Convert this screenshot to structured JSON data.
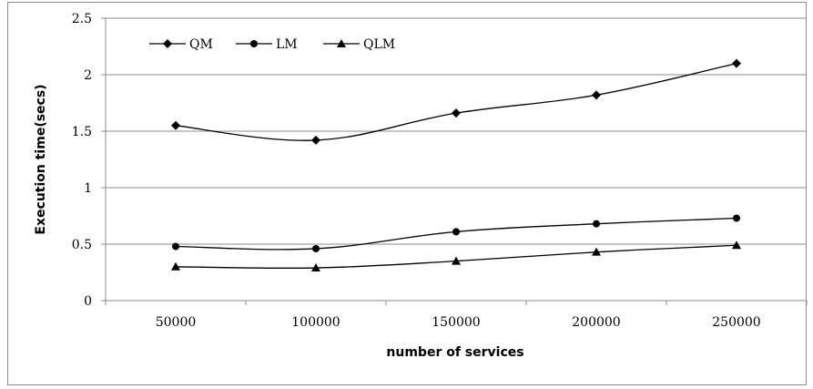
{
  "chart_data": {
    "type": "line",
    "categories": [
      "50000",
      "100000",
      "150000",
      "200000",
      "250000"
    ],
    "series": [
      {
        "name": "QM",
        "marker": "diamond",
        "values": [
          1.55,
          1.42,
          1.66,
          1.82,
          2.1
        ]
      },
      {
        "name": "LM",
        "marker": "circle",
        "values": [
          0.48,
          0.46,
          0.61,
          0.68,
          0.73
        ]
      },
      {
        "name": "QLM",
        "marker": "triangle",
        "values": [
          0.3,
          0.29,
          0.35,
          0.43,
          0.49
        ]
      }
    ],
    "xlabel": "number of services",
    "ylabel": "Execution time(secs)",
    "ylim": [
      0,
      2.5
    ],
    "yticks": [
      0,
      0.5,
      1,
      1.5,
      2,
      2.5
    ],
    "ytick_labels": [
      "0",
      "0.5",
      "1",
      "1.5",
      "2",
      "2.5"
    ],
    "grid": "horizontal",
    "legend_position": "top-left",
    "smooth": true,
    "colors": {
      "line": "#000000",
      "grid": "#8c8c8c",
      "background": "#ffffff"
    }
  }
}
